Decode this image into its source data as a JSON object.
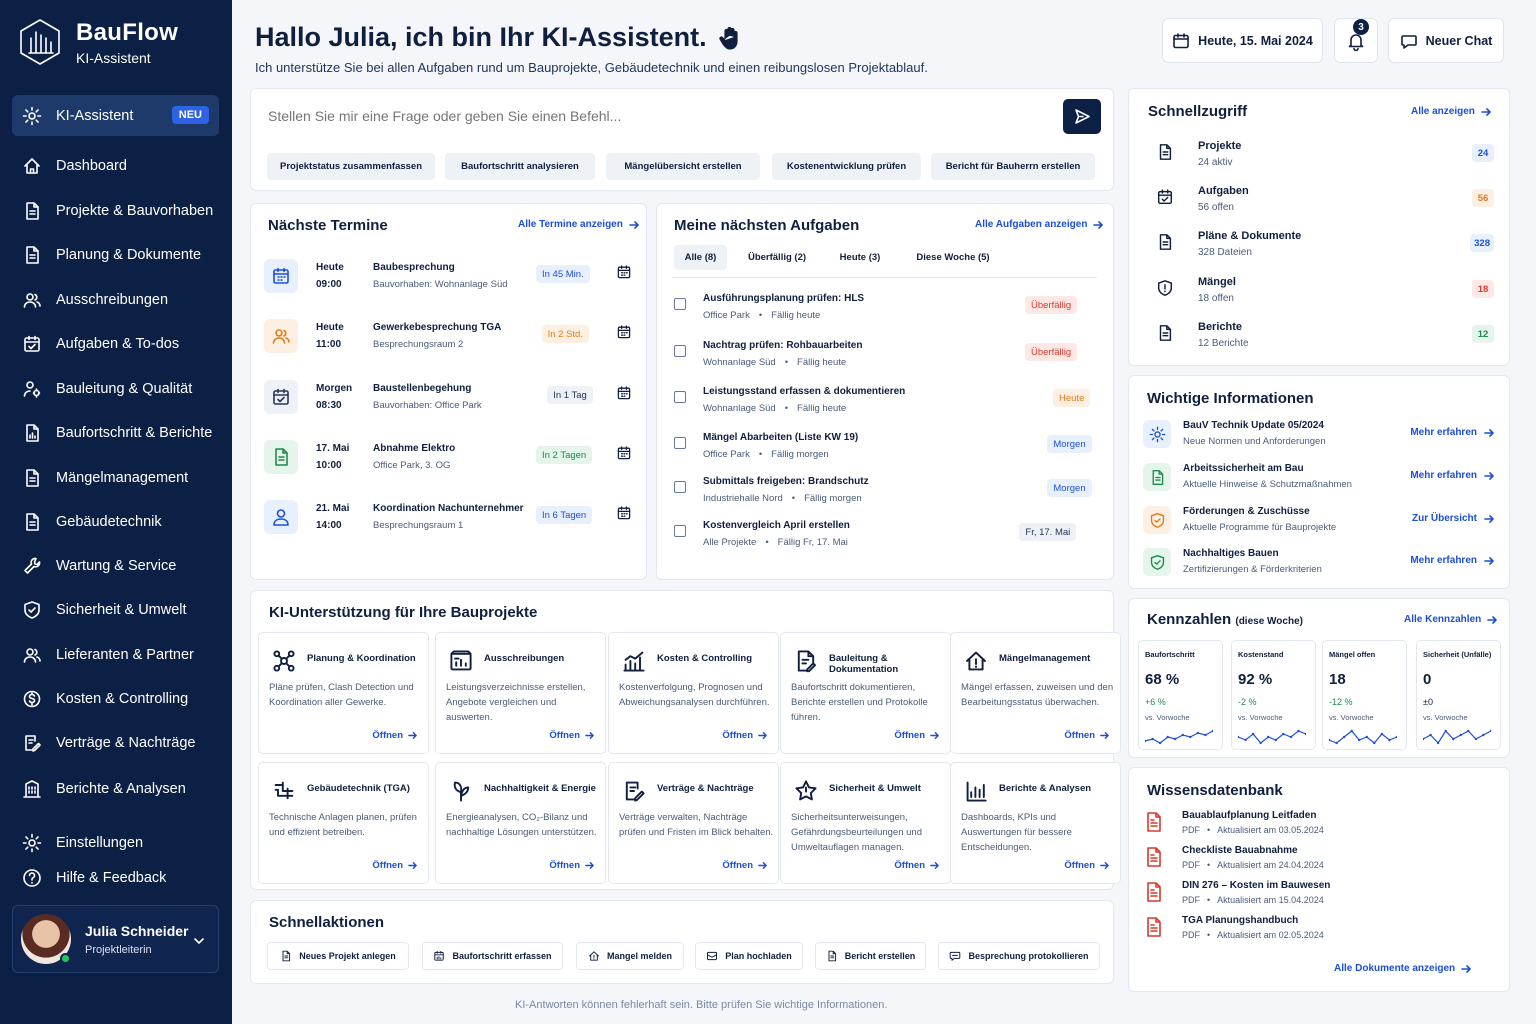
{
  "brand": {
    "name": "BauFlow",
    "subtitle": "KI-Assistent"
  },
  "colors": {
    "sidebar": "#0c2046",
    "accent": "#1c4fd6",
    "badge_new": "#2f63e6",
    "red": "#d93a2b",
    "orange": "#e07a1c",
    "green": "#1f8a4c",
    "blue": "#1c4fd6"
  },
  "nav": {
    "active": {
      "label": "KI-Assistent",
      "badge": "NEU",
      "icon": "gear-icon"
    },
    "items": [
      {
        "label": "Dashboard",
        "icon": "home-icon"
      },
      {
        "label": "Projekte & Bauvorhaben",
        "icon": "document-icon"
      },
      {
        "label": "Planung & Dokumente",
        "icon": "document-icon"
      },
      {
        "label": "Ausschreibungen",
        "icon": "users-icon"
      },
      {
        "label": "Aufgaben & To-dos",
        "icon": "calendar-check-icon"
      },
      {
        "label": "Bauleitung & Qualität",
        "icon": "person-gear-icon"
      },
      {
        "label": "Baufortschritt & Berichte",
        "icon": "document-chart-icon"
      },
      {
        "label": "Mängelmanagement",
        "icon": "document-icon"
      },
      {
        "label": "Gebäudetechnik",
        "icon": "document-icon"
      },
      {
        "label": "Wartung & Service",
        "icon": "wrench-icon"
      },
      {
        "label": "Sicherheit & Umwelt",
        "icon": "shield-icon"
      },
      {
        "label": "Lieferanten & Partner",
        "icon": "users-icon"
      },
      {
        "label": "Kosten & Controlling",
        "icon": "coin-icon"
      },
      {
        "label": "Verträge & Nachträge",
        "icon": "contract-icon"
      },
      {
        "label": "Berichte & Analysen",
        "icon": "building-icon"
      }
    ],
    "bottom": [
      {
        "label": "Einstellungen",
        "icon": "gear-icon"
      },
      {
        "label": "Hilfe & Feedback",
        "icon": "help-icon"
      }
    ]
  },
  "user": {
    "name": "Julia Schneider",
    "role": "Projektleiterin"
  },
  "header": {
    "greeting": "Hallo Julia, ich bin Ihr KI-Assistent.",
    "wave_icon": "waving-hand-icon",
    "subtitle": "Ich unterstütze Sie bei allen Aufgaben rund um Bauprojekte, Gebäudetechnik und einen reibungslosen Projektablauf.",
    "date_label": "Heute, 15. Mai 2024",
    "notifications": "3",
    "new_chat": "Neuer Chat"
  },
  "prompt": {
    "placeholder": "Stellen Sie mir eine Frage oder geben Sie einen Befehl...",
    "chips": [
      "Projektstatus zusammenfassen",
      "Baufortschritt analysieren",
      "Mängelübersicht erstellen",
      "Kostenentwicklung prüfen",
      "Bericht für Bauherrn erstellen"
    ]
  },
  "termine": {
    "title": "Nächste Termine",
    "link": "Alle Termine anzeigen",
    "items": [
      {
        "day": "Heute",
        "time": "09:00",
        "title": "Baubesprechung",
        "sub": "Bauvorhaben: Wohnanlage Süd",
        "pill": "In 45 Min.",
        "tone": "blue",
        "icon": "calendar-icon"
      },
      {
        "day": "Heute",
        "time": "11:00",
        "title": "Gewerkebesprechung TGA",
        "sub": "Besprechungsraum 2",
        "pill": "In 2 Std.",
        "tone": "orange",
        "icon": "users-icon"
      },
      {
        "day": "Morgen",
        "time": "08:30",
        "title": "Baustellenbegehung",
        "sub": "Bauvorhaben: Office Park",
        "pill": "In 1 Tag",
        "tone": "gray",
        "icon": "calendar-check-icon"
      },
      {
        "day": "17. Mai",
        "time": "10:00",
        "title": "Abnahme Elektro",
        "sub": "Office Park, 3. OG",
        "pill": "In 2 Tagen",
        "tone": "green",
        "icon": "document-icon"
      },
      {
        "day": "21. Mai",
        "time": "14:00",
        "title": "Koordination Nachunternehmer",
        "sub": "Besprechungsraum 1",
        "pill": "In 6 Tagen",
        "tone": "blue",
        "icon": "person-icon"
      }
    ]
  },
  "aufgaben": {
    "title": "Meine nächsten Aufgaben",
    "link": "Alle Aufgaben anzeigen",
    "tabs": [
      "Alle (8)",
      "Überfällig (2)",
      "Heute (3)",
      "Diese Woche (5)"
    ],
    "items": [
      {
        "title": "Ausführungsplanung prüfen: HLS",
        "project": "Office Park",
        "due": "Fällig heute",
        "pill": "Überfällig",
        "tone": "red"
      },
      {
        "title": "Nachtrag prüfen: Rohbauarbeiten",
        "project": "Wohnanlage Süd",
        "due": "Fällig heute",
        "pill": "Überfällig",
        "tone": "red"
      },
      {
        "title": "Leistungsstand erfassen & dokumentieren",
        "project": "Wohnanlage Süd",
        "due": "Fällig heute",
        "pill": "Heute",
        "tone": "orange"
      },
      {
        "title": "Mängel Abarbeiten (Liste KW 19)",
        "project": "Office Park",
        "due": "Fällig morgen",
        "pill": "Morgen",
        "tone": "blue"
      },
      {
        "title": "Submittals freigeben: Brandschutz",
        "project": "Industriehalle Nord",
        "due": "Fällig morgen",
        "pill": "Morgen",
        "tone": "blue"
      },
      {
        "title": "Kostenvergleich April erstellen",
        "project": "Alle Projekte",
        "due": "Fällig Fr, 17. Mai",
        "pill": "Fr, 17. Mai",
        "tone": "gray"
      }
    ]
  },
  "ki": {
    "title": "KI-Unterstützung für Ihre Bauprojekte",
    "open_label": "Öffnen",
    "tiles": [
      {
        "title": "Planung & Koordination",
        "desc": "Pläne prüfen, Clash Detection und Koordination aller Gewerke.",
        "icon": "network-icon"
      },
      {
        "title": "Ausschreibungen",
        "desc": "Leistungsverzeichnisse erstellen, Angebote vergleichen und auswerten.",
        "icon": "tender-icon"
      },
      {
        "title": "Kosten & Controlling",
        "desc": "Kostenverfolgung, Prognosen und Abweichungsanalysen durchführen.",
        "icon": "chart-icon"
      },
      {
        "title": "Bauleitung & Dokumentation",
        "desc": "Baufortschritt dokumentieren, Berichte erstellen und Protokolle führen.",
        "icon": "document-pen-icon"
      },
      {
        "title": "Mängelmanagement",
        "desc": "Mängel erfassen, zuweisen und den Bearbeitungsstatus überwachen.",
        "icon": "house-alert-icon"
      },
      {
        "title": "Gebäudetechnik (TGA)",
        "desc": "Technische Anlagen planen, prüfen und effizient betreiben.",
        "icon": "pipes-icon"
      },
      {
        "title": "Nachhaltigkeit & Energie",
        "desc": "Energieanalysen, CO₂-Bilanz und nachhaltige Lösungen unterstützen.",
        "icon": "leaf-icon"
      },
      {
        "title": "Verträge & Nachträge",
        "desc": "Verträge verwalten, Nachträge prüfen und Fristen im Blick behalten.",
        "icon": "contract-icon"
      },
      {
        "title": "Sicherheit & Umwelt",
        "desc": "Sicherheitsunterweisungen, Gefährdungsbeurteilungen und Umweltauflagen managen.",
        "icon": "safety-icon"
      },
      {
        "title": "Berichte & Analysen",
        "desc": "Dashboards, KPIs und Auswertungen für bessere Entscheidungen.",
        "icon": "bar-chart-icon"
      }
    ]
  },
  "schnellaktionen": {
    "title": "Schnellaktionen",
    "items": [
      {
        "label": "Neues Projekt anlegen",
        "icon": "document-icon"
      },
      {
        "label": "Baufortschritt erfassen",
        "icon": "calendar-chart-icon"
      },
      {
        "label": "Mangel melden",
        "icon": "house-alert-icon"
      },
      {
        "label": "Plan hochladen",
        "icon": "upload-icon"
      },
      {
        "label": "Bericht erstellen",
        "icon": "document-icon"
      },
      {
        "label": "Besprechung protokollieren",
        "icon": "chat-icon"
      }
    ]
  },
  "footer": "KI-Antworten können fehlerhaft sein. Bitte prüfen Sie wichtige Informationen.",
  "schnellzugriff": {
    "title": "Schnellzugriff",
    "link": "Alle anzeigen",
    "items": [
      {
        "title": "Projekte",
        "sub": "24 aktiv",
        "badge": "24",
        "tone": "blue",
        "icon": "document-icon"
      },
      {
        "title": "Aufgaben",
        "sub": "56 offen",
        "badge": "56",
        "tone": "orange",
        "icon": "calendar-check-icon"
      },
      {
        "title": "Pläne & Dokumente",
        "sub": "328 Dateien",
        "badge": "328",
        "tone": "blue",
        "icon": "document-icon"
      },
      {
        "title": "Mängel",
        "sub": "18 offen",
        "badge": "18",
        "tone": "red",
        "icon": "shield-alert-icon"
      },
      {
        "title": "Berichte",
        "sub": "12 Berichte",
        "badge": "12",
        "tone": "green",
        "icon": "document-icon"
      }
    ]
  },
  "infos": {
    "title": "Wichtige Informationen",
    "items": [
      {
        "title": "BauV Technik Update 05/2024",
        "sub": "Neue Normen und Anforderungen",
        "link": "Mehr erfahren",
        "tone": "blue",
        "icon": "gear-icon"
      },
      {
        "title": "Arbeitssicherheit am Bau",
        "sub": "Aktuelle Hinweise & Schutzmaßnahmen",
        "link": "Mehr erfahren",
        "tone": "green",
        "icon": "document-icon"
      },
      {
        "title": "Förderungen & Zuschüsse",
        "sub": "Aktuelle Programme für Bauprojekte",
        "link": "Zur Übersicht",
        "tone": "orange",
        "icon": "shield-icon"
      },
      {
        "title": "Nachhaltiges Bauen",
        "sub": "Zertifizierungen & Förderkriterien",
        "link": "Mehr erfahren",
        "tone": "green",
        "icon": "shield-icon"
      }
    ]
  },
  "kpis": {
    "title": "Kennzahlen",
    "period": "(diese Woche)",
    "link": "Alle Kennzahlen",
    "items": [
      {
        "label": "Baufortschritt",
        "value": "68 %",
        "delta": "+6 %",
        "vs": "vs. Vorwoche",
        "tone": "green",
        "trend": [
          3,
          4,
          2,
          5,
          4,
          6,
          5,
          7,
          6,
          8
        ]
      },
      {
        "label": "Kostenstand",
        "value": "92 %",
        "delta": "-2 %",
        "vs": "vs. Vorwoche",
        "tone": "green",
        "trend": [
          5,
          4,
          6,
          3,
          5,
          4,
          6,
          5,
          7,
          6
        ]
      },
      {
        "label": "Mängel offen",
        "value": "18",
        "delta": "-12 %",
        "vs": "vs. Vorwoche",
        "tone": "green",
        "trend": [
          4,
          3,
          5,
          7,
          4,
          5,
          3,
          6,
          4,
          5
        ]
      },
      {
        "label": "Sicherheit (Unfälle)",
        "value": "0",
        "delta": "±0",
        "vs": "vs. Vorwoche",
        "tone": "dark",
        "trend": [
          4,
          5,
          3,
          6,
          4,
          5,
          6,
          4,
          5,
          6
        ]
      }
    ]
  },
  "wissen": {
    "title": "Wissensdatenbank",
    "link": "Alle Dokumente anzeigen",
    "items": [
      {
        "title": "Bauablaufplanung Leitfaden",
        "type": "PDF",
        "updated": "Aktualisiert am 03.05.2024"
      },
      {
        "title": "Checkliste Bauabnahme",
        "type": "PDF",
        "updated": "Aktualisiert am 24.04.2024"
      },
      {
        "title": "DIN 276 – Kosten im Bauwesen",
        "type": "PDF",
        "updated": "Aktualisiert am 15.04.2024"
      },
      {
        "title": "TGA Planungshandbuch",
        "type": "PDF",
        "updated": "Aktualisiert am 02.05.2024"
      }
    ]
  }
}
